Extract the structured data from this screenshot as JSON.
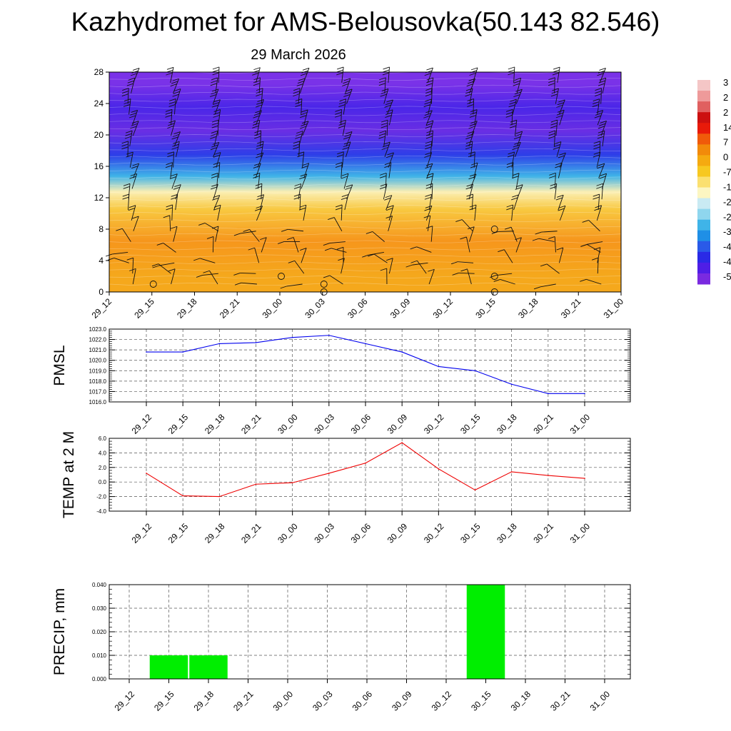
{
  "header": {
    "title": "Kazhydromet for AMS-Belousovka(50.143 82.546)",
    "date": "29 March 2026"
  },
  "time_labels": [
    "29_12",
    "29_15",
    "29_18",
    "29_21",
    "30_00",
    "30_03",
    "30_06",
    "30_09",
    "30_12",
    "30_15",
    "30_18",
    "30_21",
    "31_00"
  ],
  "chart_data": [
    {
      "type": "heatmap",
      "title": "Vertical cross-section (temperature shading with wind barbs)",
      "ylim": [
        0,
        28
      ],
      "y_ticks": [
        "0",
        "4",
        "8",
        "12",
        "16",
        "20",
        "24",
        "28"
      ],
      "x_ticks": [
        "29_12",
        "29_15",
        "29_18",
        "29_21",
        "30_00",
        "30_03",
        "30_06",
        "30_09",
        "30_12",
        "30_15",
        "30_18",
        "30_21",
        "31_00"
      ],
      "colorbar": {
        "visible_labels": [
          "3",
          "2",
          "2",
          "14",
          "7",
          "0",
          "-7",
          "-1",
          "-2",
          "-2",
          "-3",
          "-4",
          "-4",
          "-5"
        ],
        "colors": [
          "#f4c6c6",
          "#ee9a9a",
          "#e06060",
          "#cc1010",
          "#e81a0a",
          "#f05a0a",
          "#f28a0a",
          "#f5aa10",
          "#f7c820",
          "#fbe070",
          "#fcf6c2",
          "#c9eaf3",
          "#8fd6ee",
          "#3fb4e8",
          "#1f8fe6",
          "#2a5ae8",
          "#2a2ae6",
          "#4f1ee6",
          "#7a2ae0"
        ]
      },
      "bands": [
        {
          "level_from": 0,
          "level_to": 4,
          "color": "#f5a81c"
        },
        {
          "level_from": 4,
          "level_to": 9,
          "color": "#f6961c"
        },
        {
          "level_from": 9,
          "level_to": 12,
          "color": "#f8c840"
        },
        {
          "level_from": 12,
          "level_to": 13.5,
          "color": "#fbefb4"
        },
        {
          "level_from": 13.5,
          "level_to": 16,
          "color": "#3fb3e8"
        },
        {
          "level_from": 16,
          "level_to": 19,
          "color": "#2e3ee8"
        },
        {
          "level_from": 19,
          "level_to": 22,
          "color": "#6a2ee4"
        },
        {
          "level_from": 22,
          "level_to": 25,
          "color": "#4a26e8"
        },
        {
          "level_from": 25,
          "level_to": 28,
          "color": "#7a32e8"
        }
      ]
    },
    {
      "type": "line",
      "ylabel": "PMSL",
      "color": "#0000ee",
      "ylim": [
        1016.0,
        1023.0
      ],
      "y_ticks": [
        "1016.0",
        "1017.0",
        "1018.0",
        "1019.0",
        "1020.0",
        "1021.0",
        "1022.0",
        "1023.0"
      ],
      "x": [
        "29_12",
        "29_15",
        "29_18",
        "29_21",
        "30_00",
        "30_03",
        "30_06",
        "30_09",
        "30_12",
        "30_15",
        "30_18",
        "30_21",
        "31_00"
      ],
      "values": [
        1020.8,
        1020.8,
        1021.6,
        1021.7,
        1022.2,
        1022.4,
        1021.6,
        1020.8,
        1019.4,
        1019.0,
        1017.7,
        1016.8,
        1016.8
      ]
    },
    {
      "type": "line",
      "ylabel": "TEMP at 2 M",
      "color": "#ee0000",
      "ylim": [
        -4.0,
        6.0
      ],
      "y_ticks": [
        "-4.0",
        "-2.0",
        "0.0",
        "2.0",
        "4.0",
        "6.0"
      ],
      "x": [
        "29_12",
        "29_15",
        "29_18",
        "29_21",
        "30_00",
        "30_03",
        "30_06",
        "30_09",
        "30_12",
        "30_15",
        "30_18",
        "30_21",
        "31_00"
      ],
      "values": [
        1.2,
        -1.9,
        -2.0,
        -0.3,
        -0.1,
        1.2,
        2.6,
        5.4,
        1.8,
        -1.1,
        1.4,
        0.9,
        0.5
      ]
    },
    {
      "type": "bar",
      "ylabel": "PRECIP, mm",
      "color": "#00ee00",
      "ylim": [
        0.0,
        0.04
      ],
      "y_ticks": [
        "0.000",
        "0.010",
        "0.020",
        "0.030",
        "0.040"
      ],
      "categories": [
        "29_12",
        "29_15",
        "29_18",
        "29_21",
        "30_00",
        "30_03",
        "30_06",
        "30_09",
        "30_12",
        "30_15",
        "30_18",
        "30_21",
        "31_00"
      ],
      "values": [
        0,
        0.01,
        0.01,
        0,
        0,
        0,
        0,
        0,
        0,
        0.04,
        0,
        0,
        0
      ]
    }
  ]
}
